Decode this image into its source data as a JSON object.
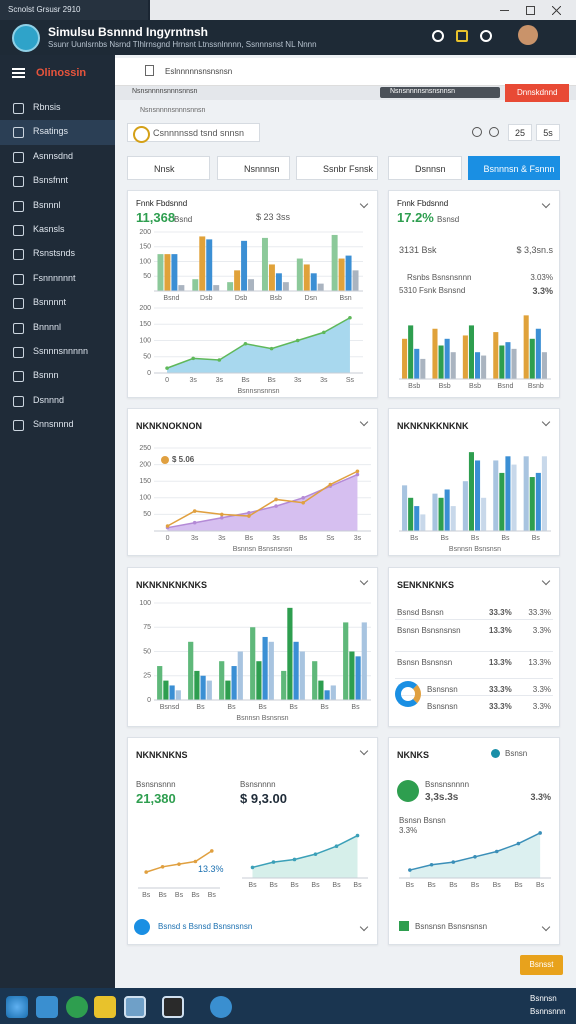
{
  "window": {
    "tab": "Scnolst Grsusr 2910",
    "title": "Simulsu Bsnnnd Ingyrntnsh",
    "subtitle": "Ssunr Uunlsrnbs Nsrnd Tlhlrnsgnd Hrnsnt Ltnssnlnnnn, Ssnnnsnst NL Nnnn"
  },
  "sidebar": {
    "brand": "Olinossin",
    "items": [
      "Rbnsis",
      "Rsatings",
      "Asnnsdnd",
      "Bsnsfnnt",
      "Bsnnnl",
      "Kasnsls",
      "Rsnstsnds",
      "Fsnnnnnnt",
      "Bsnnnnt",
      "Bnnnnl",
      "Ssnnnsnnnnn",
      "Bsnnn",
      "Dsnnnd",
      "Snnsnnnd"
    ]
  },
  "browser": {
    "address": "Eslnnnnnsnsnsnsn",
    "breadcrumb": "Nsnsnnnnsnnnsnnsn",
    "pill": "Nsnsnnnnsnsnsnnsn",
    "action": "Dnnskdnnd"
  },
  "toolbar": {
    "search": "Csnnnnssd tsnd snnsn",
    "pages": [
      "25",
      "5s"
    ]
  },
  "filters": [
    "Nnsk",
    "Nsnnnsn",
    "Ssnbr Fsnsk",
    "Dsnnsn",
    "Bsnnnsn & Fsnnn"
  ],
  "panels": [
    {
      "title": "Fnnk Fbdsnnd",
      "value": "11,368",
      "unit": "Bsnd",
      "badge": "$ 23 3ss",
      "charts": [
        {
          "type": "bar",
          "ylim": [
            0,
            200
          ],
          "yticks": [
            50,
            100,
            150,
            200
          ],
          "categories": [
            "Bsnd",
            "Dsb",
            "Dsb",
            "Bsb",
            "Dsn",
            "Bsn"
          ],
          "series": [
            {
              "color": "#8cc99a",
              "values": [
                125,
                40,
                30,
                180,
                110,
                190
              ]
            },
            {
              "color": "#e0a23a",
              "values": [
                125,
                185,
                70,
                90,
                90,
                110
              ]
            },
            {
              "color": "#3b8fd4",
              "values": [
                125,
                175,
                170,
                60,
                60,
                120
              ]
            },
            {
              "color": "#aab4c0",
              "values": [
                20,
                20,
                40,
                30,
                25,
                70
              ]
            }
          ]
        },
        {
          "type": "line",
          "ylim": [
            0,
            200
          ],
          "yticks": [
            0,
            50,
            100,
            150,
            200
          ],
          "categories": [
            "0",
            "3s",
            "3s",
            "Bs",
            "Bs",
            "3s",
            "3s",
            "Ss"
          ],
          "xlabel": "Bsnnsnsnnsn",
          "series": [
            {
              "color": "#5fb85a",
              "fill": "#a8d8ee",
              "values": [
                15,
                45,
                40,
                90,
                75,
                100,
                125,
                170
              ]
            }
          ]
        }
      ]
    },
    {
      "title": "Fnnk Fbdsnnd",
      "value": "17.2%",
      "unit": "Bsnsd",
      "rows": [
        {
          "label": "3131 Bsk",
          "value": "$ 3,3sn.s"
        },
        {
          "label": "Rsnbs Bsnsnsnnn",
          "value": "3.03%"
        },
        {
          "label": "5310 Fsnk Bsnsnd",
          "value": "3.3%"
        }
      ],
      "charts": [
        {
          "type": "bar",
          "ylim": [
            0,
            100
          ],
          "categories": [
            "Bsb",
            "Bsb",
            "Bsb",
            "Bsnd",
            "Bsnb"
          ],
          "series": [
            {
              "color": "#e0a23a",
              "values": [
                60,
                75,
                65,
                70,
                95
              ]
            },
            {
              "color": "#2e9e4f",
              "values": [
                80,
                50,
                80,
                50,
                60
              ]
            },
            {
              "color": "#3b8fd4",
              "values": [
                45,
                60,
                40,
                55,
                75
              ]
            },
            {
              "color": "#aab4c0",
              "values": [
                30,
                40,
                35,
                45,
                40
              ]
            }
          ]
        }
      ]
    },
    {
      "title": "NKNKNOKNON",
      "note": "$ 5.06",
      "charts": [
        {
          "type": "line",
          "ylim": [
            0,
            250
          ],
          "yticks": [
            50,
            100,
            150,
            200,
            250
          ],
          "categories": [
            "0",
            "3s",
            "3s",
            "Bs",
            "3s",
            "Bs",
            "Ss",
            "3s"
          ],
          "xlabel": "Bsnnsn Bsnsnsnsn",
          "series": [
            {
              "color": "#b48ad6",
              "fill": "#d6bff0",
              "values": [
                10,
                25,
                40,
                55,
                75,
                100,
                135,
                170
              ]
            },
            {
              "color": "#e0a040",
              "values": [
                15,
                60,
                50,
                45,
                95,
                85,
                140,
                180
              ]
            }
          ]
        }
      ]
    },
    {
      "title": "NKNKNKKNKNK",
      "charts": [
        {
          "type": "bar",
          "ylim": [
            0,
            100
          ],
          "categories": [
            "Bs",
            "Bs",
            "Bs",
            "Bs",
            "Bs"
          ],
          "xlabel": "Bsnnsn Bsnsnsn",
          "series": [
            {
              "color": "#a8c4e0",
              "values": [
                55,
                45,
                60,
                85,
                90
              ]
            },
            {
              "color": "#2e9e4f",
              "values": [
                40,
                40,
                95,
                70,
                65
              ]
            },
            {
              "color": "#3b8fd4",
              "values": [
                30,
                50,
                85,
                90,
                70
              ]
            },
            {
              "color": "#c8d8ea",
              "values": [
                20,
                30,
                40,
                80,
                90
              ]
            }
          ]
        }
      ]
    },
    {
      "title": "NKNKNKNKNKS",
      "charts": [
        {
          "type": "bar",
          "ylim": [
            0,
            100
          ],
          "yticks": [
            0,
            25,
            50,
            75,
            100
          ],
          "categories": [
            "Bsnsd",
            "Bs",
            "Bs",
            "Bs",
            "Bs",
            "Bs",
            "Bs"
          ],
          "xlabel": "Bsnnsn Bsnsnsn",
          "series": [
            {
              "color": "#5fb87a",
              "values": [
                35,
                60,
                40,
                75,
                30,
                40,
                80
              ]
            },
            {
              "color": "#2e9e4f",
              "values": [
                20,
                30,
                20,
                40,
                95,
                20,
                50
              ]
            },
            {
              "color": "#3b8fd4",
              "values": [
                15,
                25,
                35,
                65,
                60,
                10,
                45
              ]
            },
            {
              "color": "#a8c4e0",
              "values": [
                10,
                20,
                50,
                60,
                50,
                15,
                80
              ]
            }
          ]
        }
      ]
    },
    {
      "title": "SENKNKNKS",
      "rows": [
        {
          "label": "Bsnsd Bsnsn",
          "a": "33.3%",
          "b": "33.3%"
        },
        {
          "label": "Bsnsn Bsnsnsnsn",
          "a": "13.3%",
          "b": "3.3%"
        },
        {
          "label": "Bsnsn Bsnsnsn",
          "a": "13.3%",
          "b": "13.3%"
        },
        {
          "label": "Bsnsnsn",
          "a": "33.3%",
          "b": "3.3%"
        },
        {
          "label": "Bsnsnsn",
          "a": "33.3%",
          "b": "3.3%"
        }
      ]
    },
    {
      "title": "NKNKNKNS",
      "kpis": [
        {
          "label": "Bsnsnsnnn",
          "value": "21,380"
        },
        {
          "label": "Bsnsnnnn",
          "value": "$ 9,3.00"
        }
      ],
      "note": "13.3%",
      "footer": "Bsnsd s Bsnsd Bsnsnsnsn",
      "charts": [
        {
          "type": "line",
          "ylim": [
            0,
            100
          ],
          "categories": [
            "Bs",
            "Bs",
            "Bs",
            "Bs",
            "Bs"
          ],
          "series": [
            {
              "color": "#e0a040",
              "values": [
                30,
                40,
                45,
                50,
                70
              ]
            }
          ]
        },
        {
          "type": "line",
          "ylim": [
            0,
            100
          ],
          "categories": [
            "Bs",
            "Bs",
            "Bs",
            "Bs",
            "Bs",
            "Bs"
          ],
          "series": [
            {
              "color": "#3ba0b8",
              "fill": "#d6efea",
              "values": [
                20,
                30,
                35,
                45,
                60,
                80
              ]
            }
          ]
        }
      ]
    },
    {
      "title": "NKNKS",
      "dropdown": "Bsnsn",
      "kpi": "Bsnsnsnnnn",
      "value": "3,3s.3s",
      "side": "3.3%",
      "sub": "Bsnsn Bsnsn",
      "subvalue": "3.3%",
      "footer": "Bsnsnsn Bsnsnsnsn",
      "charts": [
        {
          "type": "line",
          "ylim": [
            0,
            100
          ],
          "categories": [
            "Bs",
            "Bs",
            "Bs",
            "Bs",
            "Bs",
            "Bs",
            "Bs"
          ],
          "series": [
            {
              "color": "#3b8fb8",
              "fill": "#dcf0f0",
              "values": [
                15,
                25,
                30,
                40,
                50,
                65,
                85
              ]
            }
          ]
        }
      ]
    }
  ],
  "footer": {
    "button": "Bsnsst"
  },
  "taskbar": {
    "time": "Bsnnsn",
    "date": "Bsnnsnnn"
  }
}
